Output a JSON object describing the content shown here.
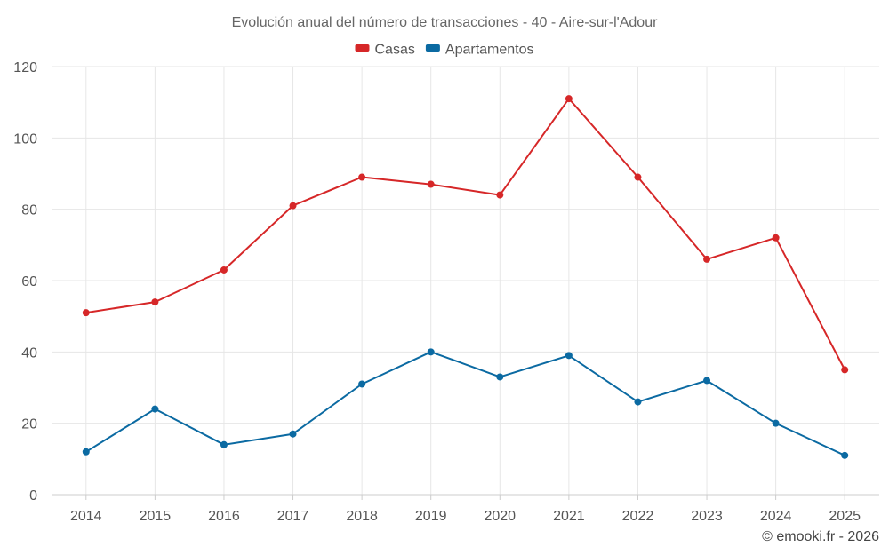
{
  "chart_data": {
    "type": "line",
    "title": "Evolución anual del número de transacciones - 40 - Aire-sur-l'Adour",
    "categories": [
      "2014",
      "2015",
      "2016",
      "2017",
      "2018",
      "2019",
      "2020",
      "2021",
      "2022",
      "2023",
      "2024",
      "2025"
    ],
    "series": [
      {
        "name": "Casas",
        "color": "#d62728",
        "values": [
          51,
          54,
          63,
          81,
          89,
          87,
          84,
          111,
          89,
          66,
          72,
          35
        ]
      },
      {
        "name": "Apartamentos",
        "color": "#0b6aa2",
        "values": [
          12,
          24,
          14,
          17,
          31,
          40,
          33,
          39,
          26,
          32,
          20,
          11
        ]
      }
    ],
    "ylim": [
      0,
      120
    ],
    "yticks": [
      0,
      20,
      40,
      60,
      80,
      100,
      120
    ],
    "grid": true,
    "legend": "top-center",
    "xlabel": "",
    "ylabel": ""
  },
  "credit": "© emooki.fr - 2026"
}
